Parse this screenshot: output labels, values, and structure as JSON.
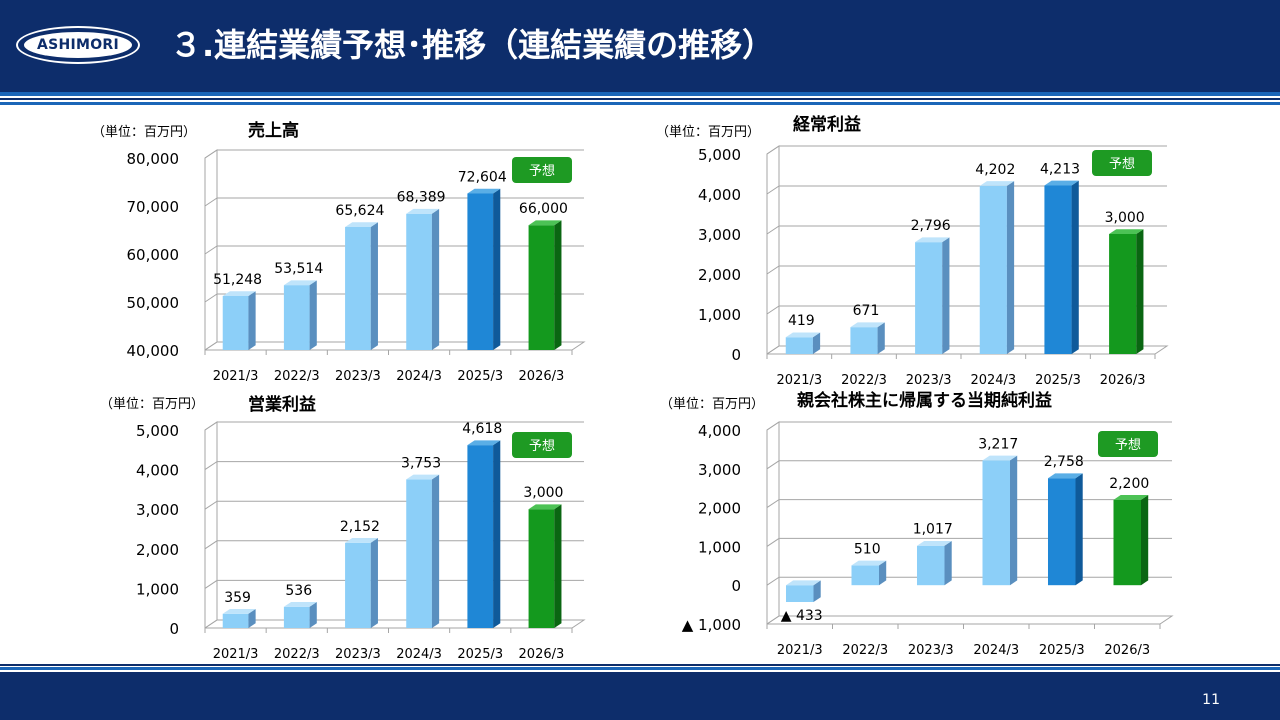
{
  "header": {
    "logo_text": "ASHIMORI",
    "title": "３.連結業績予想･推移（連結業績の推移）"
  },
  "footer": {
    "page_number": "11"
  },
  "colors": {
    "navy": "#0d2d6b",
    "light_blue": "#8ccff8",
    "mid_blue": "#1f87d6",
    "green": "#14991e",
    "forecast_badge": "#1e9a23"
  },
  "chart_data": [
    {
      "id": "sales",
      "type": "bar",
      "title": "売上高",
      "unit_label": "（単位：百万円）",
      "badge": "予想",
      "categories": [
        "2021/3",
        "2022/3",
        "2023/3",
        "2024/3",
        "2025/3",
        "2026/3"
      ],
      "values": [
        51248,
        53514,
        65624,
        68389,
        72604,
        66000
      ],
      "value_labels": [
        "51,248",
        "53,514",
        "65,624",
        "68,389",
        "72,604",
        "66,000"
      ],
      "ylim": [
        40000,
        80000
      ],
      "yticks": [
        40000,
        50000,
        60000,
        70000,
        80000
      ],
      "ytick_labels": [
        "40,000",
        "50,000",
        "60,000",
        "70,000",
        "80,000"
      ],
      "bar_colors": [
        "light",
        "light",
        "light",
        "light",
        "mid",
        "green"
      ]
    },
    {
      "id": "ordinary-profit",
      "type": "bar",
      "title": "経常利益",
      "unit_label": "（単位：百万円）",
      "badge": "予想",
      "categories": [
        "2021/3",
        "2022/3",
        "2023/3",
        "2024/3",
        "2025/3",
        "2026/3"
      ],
      "values": [
        419,
        671,
        2796,
        4202,
        4213,
        3000
      ],
      "value_labels": [
        "419",
        "671",
        "2,796",
        "4,202",
        "4,213",
        "3,000"
      ],
      "ylim": [
        0,
        5000
      ],
      "yticks": [
        0,
        1000,
        2000,
        3000,
        4000,
        5000
      ],
      "ytick_labels": [
        "0",
        "1,000",
        "2,000",
        "3,000",
        "4,000",
        "5,000"
      ],
      "bar_colors": [
        "light",
        "light",
        "light",
        "light",
        "mid",
        "green"
      ]
    },
    {
      "id": "operating-profit",
      "type": "bar",
      "title": "営業利益",
      "unit_label": "（単位：百万円）",
      "badge": "予想",
      "categories": [
        "2021/3",
        "2022/3",
        "2023/3",
        "2024/3",
        "2025/3",
        "2026/3"
      ],
      "values": [
        359,
        536,
        2152,
        3753,
        4618,
        3000
      ],
      "value_labels": [
        "359",
        "536",
        "2,152",
        "3,753",
        "4,618",
        "3,000"
      ],
      "ylim": [
        0,
        5000
      ],
      "yticks": [
        0,
        1000,
        2000,
        3000,
        4000,
        5000
      ],
      "ytick_labels": [
        "0",
        "1,000",
        "2,000",
        "3,000",
        "4,000",
        "5,000"
      ],
      "bar_colors": [
        "light",
        "light",
        "light",
        "light",
        "mid",
        "green"
      ]
    },
    {
      "id": "net-income",
      "type": "bar",
      "title": "親会社株主に帰属する当期純利益",
      "unit_label": "（単位：百万円）",
      "badge": "予想",
      "categories": [
        "2021/3",
        "2022/3",
        "2023/3",
        "2024/3",
        "2025/3",
        "2026/3"
      ],
      "values": [
        -433,
        510,
        1017,
        3217,
        2758,
        2200
      ],
      "value_labels": [
        "▲ 433",
        "510",
        "1,017",
        "3,217",
        "2,758",
        "2,200"
      ],
      "ylim": [
        -1000,
        4000
      ],
      "yticks": [
        -1000,
        0,
        1000,
        2000,
        3000,
        4000
      ],
      "ytick_labels": [
        "▲ 1,000",
        "0",
        "1,000",
        "2,000",
        "3,000",
        "4,000"
      ],
      "bar_colors": [
        "light",
        "light",
        "light",
        "light",
        "mid",
        "green"
      ]
    }
  ]
}
